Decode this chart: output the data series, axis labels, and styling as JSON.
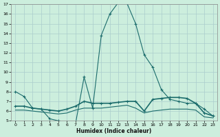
{
  "xlabel": "Humidex (Indice chaleur)",
  "ylabel": "",
  "bg_color": "#cceedd",
  "grid_color": "#aacccc",
  "line_color": "#1a6b6b",
  "xlim": [
    -0.5,
    23.5
  ],
  "ylim": [
    5,
    17
  ],
  "yticks": [
    5,
    6,
    7,
    8,
    9,
    10,
    11,
    12,
    13,
    14,
    15,
    16,
    17
  ],
  "xticks": [
    0,
    1,
    2,
    3,
    4,
    5,
    6,
    7,
    8,
    9,
    10,
    11,
    12,
    13,
    14,
    15,
    16,
    17,
    18,
    19,
    20,
    21,
    22,
    23
  ],
  "series1_x": [
    0,
    1,
    2,
    3,
    4,
    5,
    6,
    7,
    8,
    9,
    10,
    11,
    12,
    13,
    14,
    15,
    16,
    17,
    18,
    19,
    20,
    21,
    22,
    23
  ],
  "series1_y": [
    8.0,
    7.5,
    6.3,
    6.2,
    5.2,
    5.0,
    4.8,
    4.7,
    9.5,
    6.3,
    13.8,
    16.0,
    17.2,
    17.1,
    15.0,
    11.8,
    10.5,
    8.2,
    7.2,
    7.0,
    6.8,
    6.8,
    6.2,
    5.5
  ],
  "series2_x": [
    0,
    1,
    2,
    3,
    4,
    5,
    6,
    7,
    8,
    9,
    10,
    11,
    12,
    13,
    14,
    15,
    16,
    17,
    18,
    19,
    20,
    21,
    22,
    23
  ],
  "series2_y": [
    6.5,
    6.5,
    6.3,
    6.2,
    6.1,
    6.0,
    6.2,
    6.5,
    7.0,
    6.8,
    6.8,
    6.8,
    6.9,
    7.0,
    7.0,
    6.0,
    7.2,
    7.3,
    7.4,
    7.4,
    7.3,
    6.8,
    5.8,
    5.5
  ],
  "series3_x": [
    0,
    1,
    2,
    3,
    4,
    5,
    6,
    7,
    8,
    9,
    10,
    11,
    12,
    13,
    14,
    15,
    16,
    17,
    18,
    19,
    20,
    21,
    22,
    23
  ],
  "series3_y": [
    6.1,
    6.1,
    6.0,
    5.9,
    5.8,
    5.7,
    5.8,
    6.1,
    6.3,
    6.3,
    6.3,
    6.4,
    6.5,
    6.6,
    6.3,
    5.8,
    6.0,
    6.1,
    6.2,
    6.2,
    6.2,
    6.1,
    5.4,
    5.3
  ]
}
